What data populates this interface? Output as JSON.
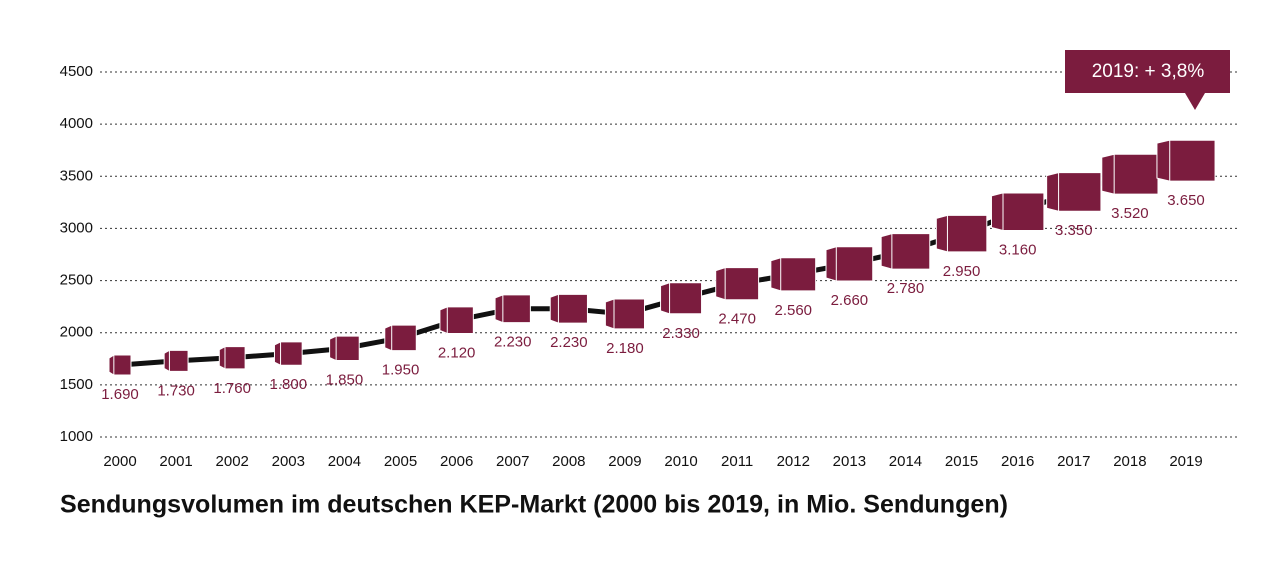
{
  "chart_data": {
    "type": "line",
    "title": "Sendungsvolumen im deutschen KEP-Markt (2000 bis 2019, in Mio. Sendungen)",
    "annotation": "2019: + 3,8%",
    "categories": [
      "2000",
      "2001",
      "2002",
      "2003",
      "2004",
      "2005",
      "2006",
      "2007",
      "2008",
      "2009",
      "2010",
      "2011",
      "2012",
      "2013",
      "2014",
      "2015",
      "2016",
      "2017",
      "2018",
      "2019"
    ],
    "series": [
      {
        "name": "Sendungsvolumen",
        "color": "#7b1c3e",
        "values": [
          1690,
          1730,
          1760,
          1800,
          1850,
          1950,
          2120,
          2230,
          2230,
          2180,
          2330,
          2470,
          2560,
          2660,
          2780,
          2950,
          3160,
          3350,
          3520,
          3650
        ],
        "value_labels": [
          "1.690",
          "1.730",
          "1.760",
          "1.800",
          "1.850",
          "1.950",
          "2.120",
          "2.230",
          "2.230",
          "2.180",
          "2.330",
          "2.470",
          "2.560",
          "2.660",
          "2.780",
          "2.950",
          "3.160",
          "3.350",
          "3.520",
          "3.650"
        ]
      }
    ],
    "line_color": "#111111",
    "ylim": [
      1000,
      4500
    ],
    "yticks": [
      1000,
      1500,
      2000,
      2500,
      3000,
      3500,
      4000,
      4500
    ],
    "grid": true
  }
}
